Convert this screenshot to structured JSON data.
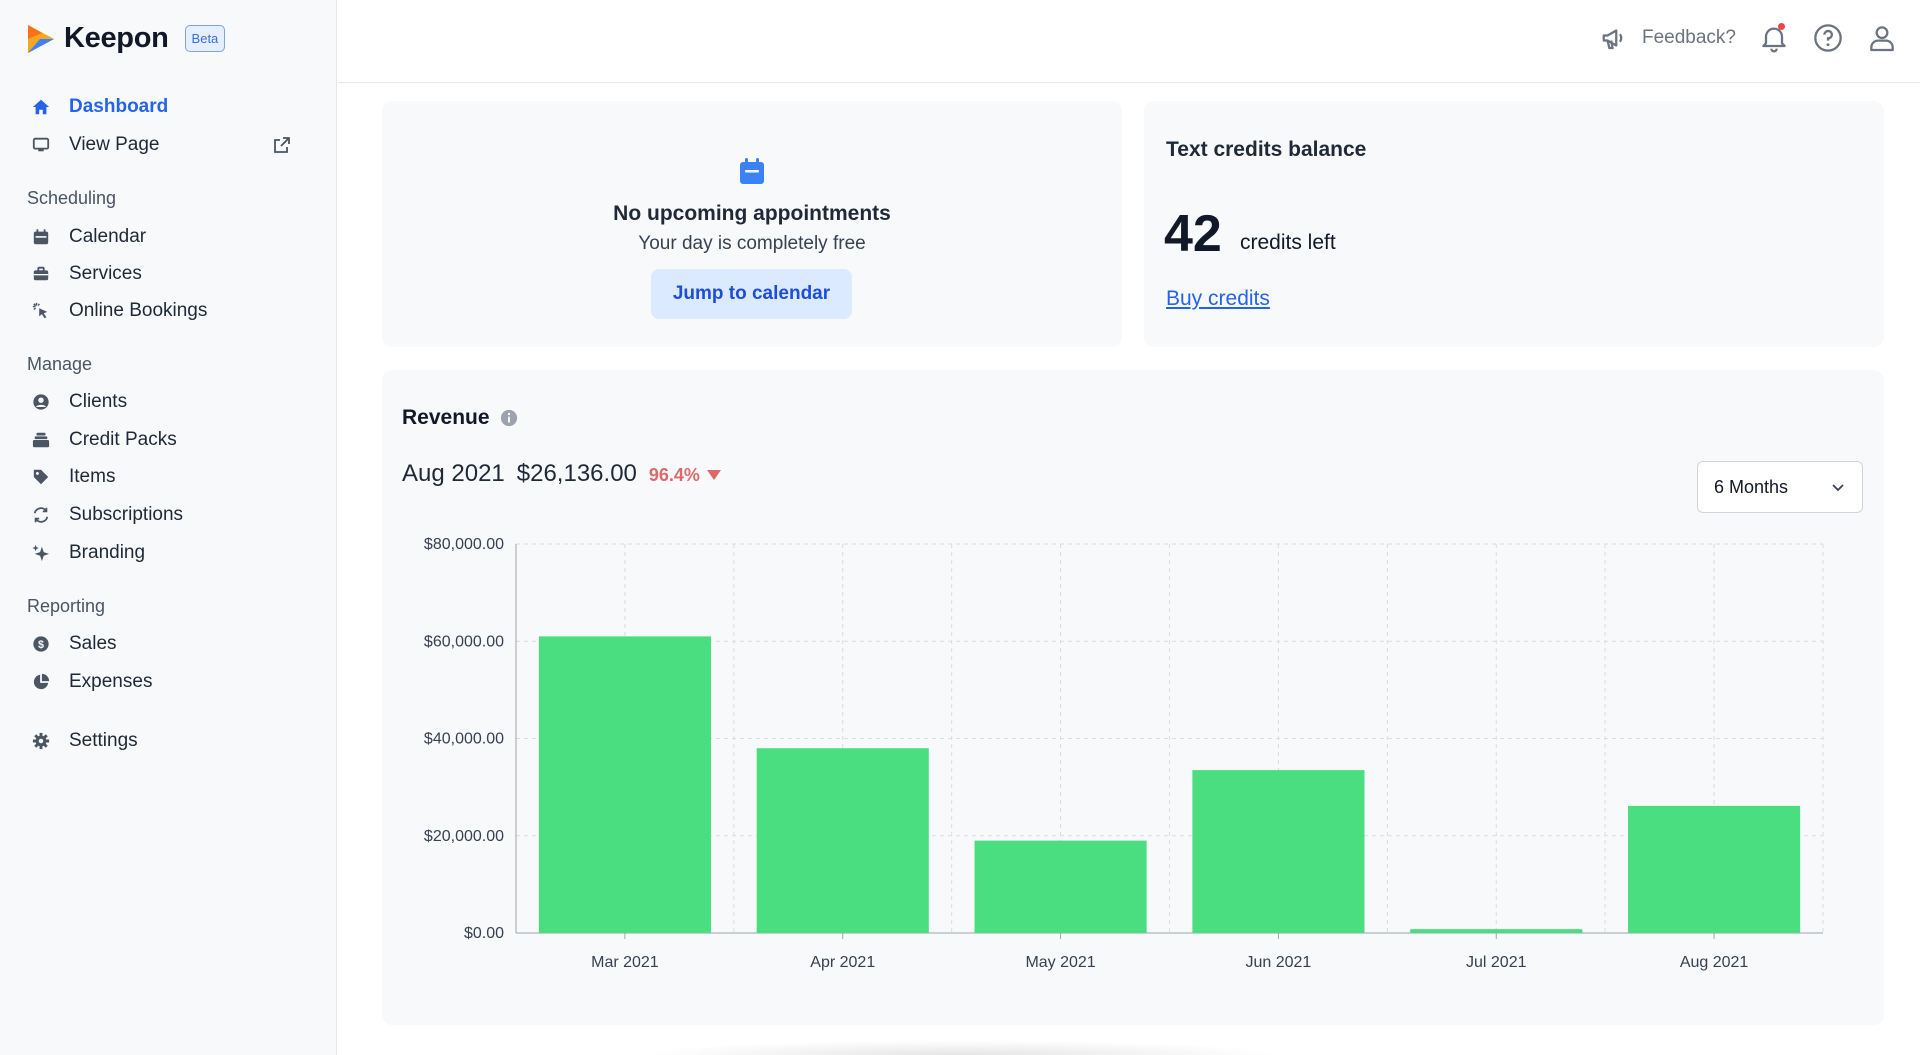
{
  "brand": {
    "name": "Keepon",
    "badge": "Beta"
  },
  "sidebar": {
    "top_items": [
      {
        "label": "Dashboard",
        "icon": "home-icon",
        "active": true
      },
      {
        "label": "View Page",
        "icon": "monitor-icon",
        "external": true
      }
    ],
    "sections": [
      {
        "label": "Scheduling",
        "items": [
          {
            "label": "Calendar",
            "icon": "calendar-icon"
          },
          {
            "label": "Services",
            "icon": "briefcase-icon"
          },
          {
            "label": "Online Bookings",
            "icon": "cursor-click-icon"
          }
        ]
      },
      {
        "label": "Manage",
        "items": [
          {
            "label": "Clients",
            "icon": "user-circle-icon"
          },
          {
            "label": "Credit Packs",
            "icon": "stack-icon"
          },
          {
            "label": "Items",
            "icon": "tag-icon"
          },
          {
            "label": "Subscriptions",
            "icon": "refresh-icon"
          },
          {
            "label": "Branding",
            "icon": "sparkles-icon"
          }
        ]
      },
      {
        "label": "Reporting",
        "items": [
          {
            "label": "Sales",
            "icon": "dollar-circle-icon"
          },
          {
            "label": "Expenses",
            "icon": "pie-chart-icon"
          }
        ]
      }
    ],
    "settings": {
      "label": "Settings",
      "icon": "gear-icon"
    }
  },
  "header": {
    "feedback_label": "Feedback?",
    "notification_unread": true
  },
  "appointments": {
    "title": "No upcoming appointments",
    "subtitle": "Your day is completely free",
    "button_label": "Jump to calendar"
  },
  "credits": {
    "title": "Text credits balance",
    "count": "42",
    "unit_label": "credits left",
    "link_label": "Buy credits"
  },
  "revenue": {
    "title": "Revenue",
    "month": "Aug 2021",
    "amount": "$26,136.00",
    "change": "96.4%",
    "change_direction": "down",
    "range_select": "6 Months"
  },
  "colors": {
    "accent": "#2563eb",
    "bar": "#4ade80",
    "negative": "#dc6a6a"
  },
  "chart_data": {
    "type": "bar",
    "categories": [
      "Mar 2021",
      "Apr 2021",
      "May 2021",
      "Jun 2021",
      "Jul 2021",
      "Aug 2021"
    ],
    "values": [
      61000,
      38000,
      19000,
      33500,
      800,
      26136
    ],
    "yticks": [
      "$0.00",
      "$20,000.00",
      "$40,000.00",
      "$60,000.00",
      "$80,000.00"
    ],
    "ylim": [
      0,
      80000
    ],
    "grid": true
  }
}
